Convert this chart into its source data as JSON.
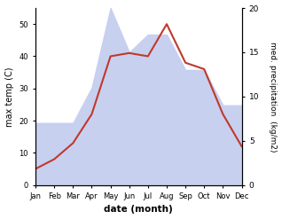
{
  "months": [
    "Jan",
    "Feb",
    "Mar",
    "Apr",
    "May",
    "Jun",
    "Jul",
    "Aug",
    "Sep",
    "Oct",
    "Nov",
    "Dec"
  ],
  "temperature": [
    5,
    8,
    13,
    22,
    40,
    41,
    40,
    50,
    38,
    36,
    22,
    12
  ],
  "precipitation": [
    7,
    7,
    7,
    11,
    20,
    15,
    17,
    17,
    13,
    13,
    9,
    9
  ],
  "temp_color": "#c0392b",
  "precip_fill_color": "#c8d0f0",
  "ylabel_left": "max temp (C)",
  "ylabel_right": "med. precipitation  (kg/m2)",
  "xlabel": "date (month)",
  "ylim_left": [
    0,
    55
  ],
  "ylim_right": [
    0,
    20
  ],
  "yticks_left": [
    0,
    10,
    20,
    30,
    40,
    50
  ],
  "yticks_right": [
    0,
    5,
    10,
    15,
    20
  ],
  "bg_color": "#ffffff"
}
